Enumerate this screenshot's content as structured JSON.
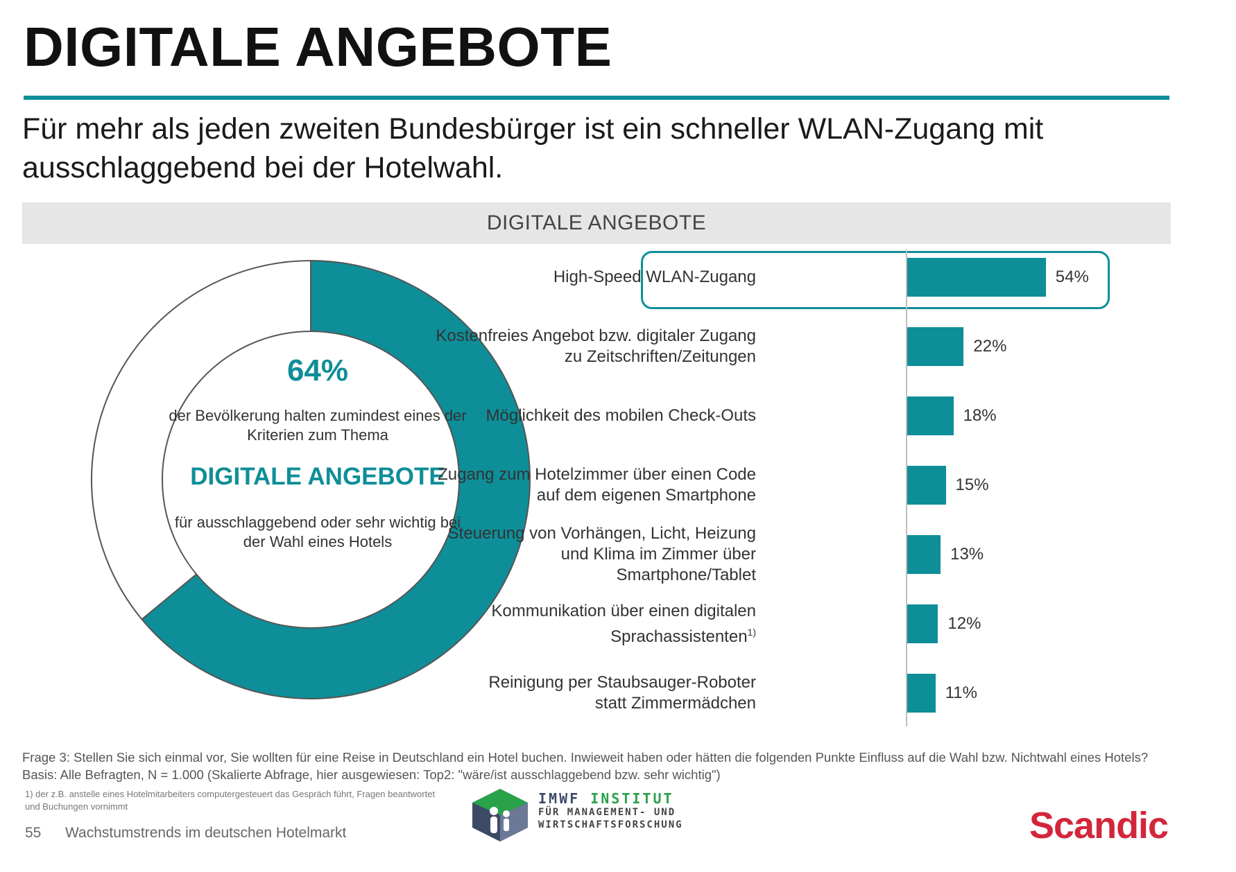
{
  "header": {
    "title": "DIGITALE ANGEBOTE",
    "subtitle": "Für mehr als jeden zweiten Bundesbürger ist ein schneller WLAN-Zugang mit ausschlaggebend bei der Hotelwahl."
  },
  "section_title": "DIGITALE ANGEBOTE",
  "donut": {
    "percent_label": "64%",
    "text_top": "der Bevölkerung halten zumindest eines der Kriterien zum Thema",
    "highlight": "DIGITALE ANGEBOTE",
    "text_bottom": "für ausschlaggebend oder sehr wichtig bei der Wahl eines Hotels"
  },
  "colors": {
    "accent": "#0e8e98",
    "scandic": "#d3263b",
    "banner": "#e6e6e6"
  },
  "chart_data": [
    {
      "type": "pie",
      "values": [
        64,
        36
      ],
      "categories": [
        "",
        ""
      ],
      "colors": [
        "#0e8e98",
        "#ffffff"
      ]
    },
    {
      "type": "bar",
      "orientation": "horizontal",
      "categories": [
        "High-Speed WLAN-Zugang",
        "Kostenfreies Angebot bzw. digitaler Zugang zu Zeitschriften/Zeitungen",
        "Möglichkeit des mobilen Check-Outs",
        "Zugang zum Hotelzimmer über einen Code auf dem eigenen Smartphone",
        "Steuerung von Vorhängen, Licht, Heizung und Klima im Zimmer über Smartphone/Tablet",
        "Kommunikation über einen digitalen Sprachassistenten",
        "Reinigung per Staubsauger-Roboter statt Zimmermädchen"
      ],
      "label_lines": [
        [
          "High-Speed WLAN-Zugang"
        ],
        [
          "Kostenfreies Angebot bzw. digitaler Zugang",
          "zu Zeitschriften/Zeitungen"
        ],
        [
          "Möglichkeit des mobilen Check-Outs"
        ],
        [
          "Zugang zum Hotelzimmer über einen Code",
          "auf dem eigenen Smartphone"
        ],
        [
          "Steuerung von Vorhängen, Licht, Heizung",
          "und Klima im Zimmer über",
          "Smartphone/Tablet"
        ],
        [
          "Kommunikation über einen digitalen",
          "Sprachassistenten"
        ],
        [
          "Reinigung per Staubsauger-Roboter",
          "statt Zimmermädchen"
        ]
      ],
      "label_superscripts": [
        "",
        "",
        "",
        "",
        "",
        "1)",
        ""
      ],
      "values": [
        54,
        22,
        18,
        15,
        13,
        12,
        11
      ],
      "value_labels": [
        "54%",
        "22%",
        "18%",
        "15%",
        "13%",
        "12%",
        "11%"
      ],
      "highlighted_index": 0
    }
  ],
  "footer": {
    "question": "Frage 3: Stellen Sie sich einmal vor, Sie wollten für eine Reise in Deutschland ein Hotel buchen. Inwieweit haben oder hätten die folgenden Punkte Einfluss auf die Wahl bzw. Nichtwahl eines Hotels? Basis: Alle Befragten, N = 1.000 (Skalierte Abfrage, hier ausgewiesen: Top2: \"wäre/ist ausschlaggebend bzw. sehr wichtig\")",
    "footnote": "1) der z.B. anstelle eines Hotelmitarbeiters computergesteuert das Gespräch führt, Fragen beantwortet und Buchungen vornimmt",
    "page_number": "55",
    "page_text": "Wachstumstrends im deutschen Hotelmarkt"
  },
  "logos": {
    "imwf_a": "IMWF",
    "imwf_b": "INSTITUT",
    "imwf_line2": "FÜR MANAGEMENT- UND",
    "imwf_line3": "WIRTSCHAFTSFORSCHUNG",
    "scandic": "Scandic"
  }
}
